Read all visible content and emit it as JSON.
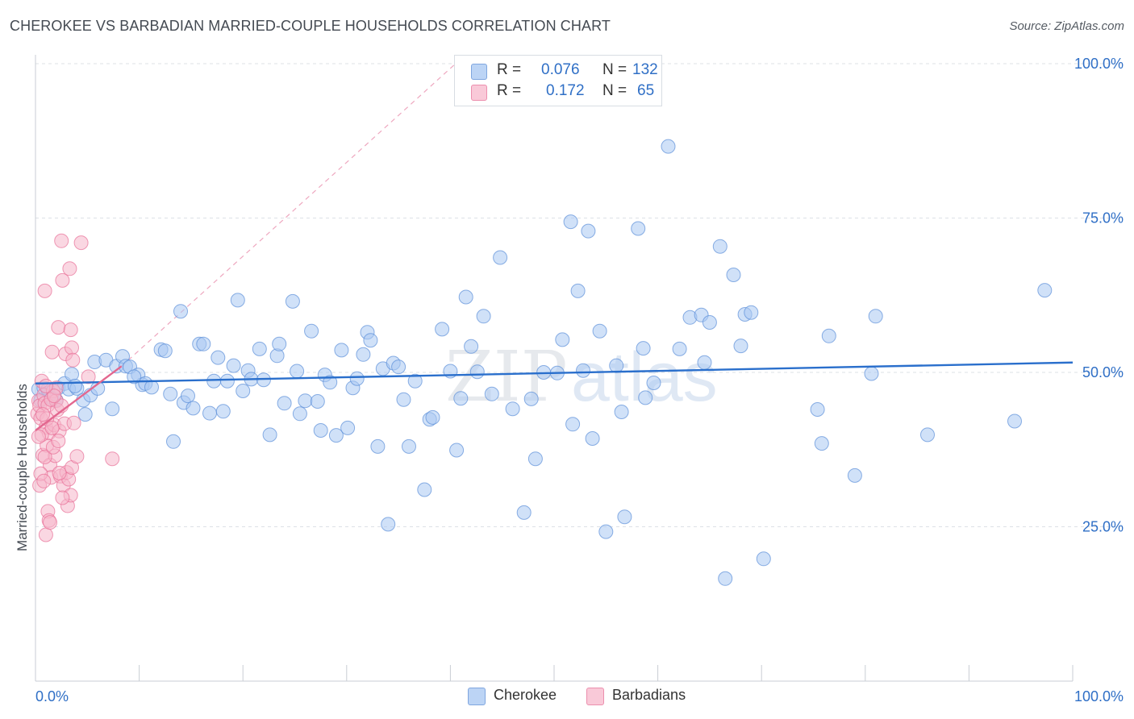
{
  "header": {
    "title": "CHEROKEE VS BARBADIAN MARRIED-COUPLE HOUSEHOLDS CORRELATION CHART",
    "source": "Source: ZipAtlas.com"
  },
  "watermark": {
    "part1": "ZIP",
    "part2": "atlas"
  },
  "legend": {
    "rows": [
      {
        "r_label": "R = ",
        "r_value": "0.076",
        "n_label": "N = ",
        "n_value": "132",
        "color": "#a9c8f2"
      },
      {
        "r_label": "R = ",
        "r_value": "0.172",
        "n_label": "N = ",
        "n_value": "65",
        "color": "#f6b6cb"
      }
    ]
  },
  "bottom_legend": {
    "items": [
      {
        "label": "Cherokee",
        "color": "#a9c8f2"
      },
      {
        "label": "Barbadians",
        "color": "#f6b6cb"
      }
    ]
  },
  "chart_data": {
    "type": "scatter",
    "title": "CHEROKEE VS BARBADIAN MARRIED-COUPLE HOUSEHOLDS CORRELATION CHART",
    "xlabel": "",
    "ylabel": "Married-couple Households",
    "xlim": [
      0,
      100
    ],
    "ylim": [
      0,
      100
    ],
    "x_tick_labels": [
      "0.0%",
      "100.0%"
    ],
    "y_ticks": [
      25,
      50,
      75,
      100
    ],
    "y_tick_labels": [
      "25.0%",
      "50.0%",
      "75.0%",
      "100.0%"
    ],
    "grid": "horizontal dashed",
    "legend_position": "top-center",
    "series": [
      {
        "name": "Cherokee",
        "color": "#5b8fd8",
        "fill": "#a9c8f2",
        "trend": {
          "x": [
            0,
            100
          ],
          "y": [
            48.2,
            51.6
          ]
        },
        "points": [
          [
            0.3,
            47.3
          ],
          [
            0.5,
            45.5
          ],
          [
            0.8,
            47.5
          ],
          [
            1.2,
            47.2
          ],
          [
            1.6,
            45.8
          ],
          [
            2.2,
            47.5
          ],
          [
            2.8,
            48.2
          ],
          [
            3.2,
            47.3
          ],
          [
            3.5,
            49.7
          ],
          [
            4.0,
            47.4
          ],
          [
            4.6,
            45.5
          ],
          [
            4.8,
            43.2
          ],
          [
            5.3,
            46.3
          ],
          [
            5.7,
            51.7
          ],
          [
            6.0,
            47.4
          ],
          [
            6.8,
            52.0
          ],
          [
            7.4,
            44.1
          ],
          [
            7.8,
            51.0
          ],
          [
            8.4,
            52.6
          ],
          [
            8.7,
            51.0
          ],
          [
            9.1,
            50.9
          ],
          [
            9.9,
            49.6
          ],
          [
            10.3,
            48.0
          ],
          [
            10.6,
            48.2
          ],
          [
            11.2,
            47.6
          ],
          [
            12.1,
            53.7
          ],
          [
            12.5,
            53.5
          ],
          [
            13.0,
            46.5
          ],
          [
            13.3,
            38.8
          ],
          [
            14.0,
            59.9
          ],
          [
            14.3,
            45.1
          ],
          [
            14.7,
            46.2
          ],
          [
            15.2,
            44.2
          ],
          [
            15.8,
            54.6
          ],
          [
            16.2,
            54.6
          ],
          [
            16.8,
            43.4
          ],
          [
            17.2,
            48.6
          ],
          [
            17.6,
            52.4
          ],
          [
            18.1,
            43.7
          ],
          [
            18.5,
            48.6
          ],
          [
            19.1,
            51.1
          ],
          [
            19.5,
            61.7
          ],
          [
            20.0,
            47.0
          ],
          [
            20.5,
            50.3
          ],
          [
            20.8,
            48.9
          ],
          [
            21.6,
            53.8
          ],
          [
            22.0,
            48.8
          ],
          [
            22.6,
            39.9
          ],
          [
            23.3,
            52.7
          ],
          [
            23.5,
            54.6
          ],
          [
            24.0,
            45.0
          ],
          [
            24.8,
            61.5
          ],
          [
            25.2,
            50.2
          ],
          [
            25.5,
            43.3
          ],
          [
            26.0,
            45.4
          ],
          [
            26.6,
            56.7
          ],
          [
            27.2,
            45.3
          ],
          [
            27.5,
            40.6
          ],
          [
            27.9,
            49.6
          ],
          [
            28.4,
            48.4
          ],
          [
            29.0,
            39.8
          ],
          [
            29.5,
            53.6
          ],
          [
            30.1,
            41.0
          ],
          [
            30.6,
            47.5
          ],
          [
            31.0,
            49.0
          ],
          [
            31.6,
            52.9
          ],
          [
            32.0,
            56.5
          ],
          [
            32.3,
            55.2
          ],
          [
            33.0,
            38.0
          ],
          [
            33.5,
            50.6
          ],
          [
            34.0,
            25.4
          ],
          [
            34.5,
            51.5
          ],
          [
            35.0,
            50.9
          ],
          [
            35.5,
            45.6
          ],
          [
            36.0,
            38.0
          ],
          [
            36.6,
            48.6
          ],
          [
            37.5,
            31.0
          ],
          [
            38.0,
            42.4
          ],
          [
            38.3,
            42.7
          ],
          [
            39.2,
            57.0
          ],
          [
            40.0,
            50.2
          ],
          [
            40.6,
            37.4
          ],
          [
            41.0,
            45.8
          ],
          [
            41.5,
            62.2
          ],
          [
            42.0,
            54.2
          ],
          [
            42.6,
            50.1
          ],
          [
            43.2,
            59.1
          ],
          [
            44.0,
            46.5
          ],
          [
            44.8,
            68.6
          ],
          [
            46.0,
            44.1
          ],
          [
            47.1,
            27.3
          ],
          [
            47.8,
            45.7
          ],
          [
            48.2,
            36.0
          ],
          [
            49.0,
            50.0
          ],
          [
            50.3,
            49.9
          ],
          [
            50.8,
            55.3
          ],
          [
            51.6,
            74.4
          ],
          [
            51.8,
            41.6
          ],
          [
            52.3,
            63.2
          ],
          [
            52.8,
            50.3
          ],
          [
            53.3,
            72.9
          ],
          [
            53.7,
            39.3
          ],
          [
            54.4,
            56.7
          ],
          [
            55.0,
            24.2
          ],
          [
            56.0,
            51.1
          ],
          [
            56.5,
            43.6
          ],
          [
            56.8,
            26.6
          ],
          [
            58.1,
            73.3
          ],
          [
            58.6,
            53.9
          ],
          [
            58.8,
            45.9
          ],
          [
            59.6,
            48.3
          ],
          [
            61.0,
            86.6
          ],
          [
            62.1,
            53.8
          ],
          [
            63.1,
            58.9
          ],
          [
            64.2,
            59.3
          ],
          [
            64.5,
            51.6
          ],
          [
            65.0,
            58.1
          ],
          [
            66.0,
            70.4
          ],
          [
            66.5,
            16.6
          ],
          [
            67.3,
            65.8
          ],
          [
            68.0,
            54.3
          ],
          [
            68.4,
            59.4
          ],
          [
            69.0,
            59.7
          ],
          [
            70.2,
            19.8
          ],
          [
            75.4,
            44.0
          ],
          [
            75.8,
            38.5
          ],
          [
            76.5,
            55.9
          ],
          [
            79.0,
            33.3
          ],
          [
            80.6,
            49.8
          ],
          [
            81.0,
            59.1
          ],
          [
            86.0,
            39.9
          ],
          [
            94.4,
            42.1
          ],
          [
            97.3,
            63.3
          ],
          [
            2.0,
            45.5
          ],
          [
            3.8,
            47.8
          ],
          [
            9.5,
            49.3
          ]
        ]
      },
      {
        "name": "Barbadians",
        "color": "#e86f97",
        "fill": "#f6b6cb",
        "trend": {
          "x": [
            0,
            8.3
          ],
          "y": [
            40.6,
            51.0
          ]
        },
        "trend_extension": {
          "x": [
            8.3,
            40.5
          ],
          "y": [
            51.0,
            100
          ]
        },
        "points": [
          [
            0.2,
            43.3
          ],
          [
            0.3,
            45.4
          ],
          [
            0.4,
            44.6
          ],
          [
            0.5,
            42.6
          ],
          [
            0.6,
            48.6
          ],
          [
            0.7,
            36.6
          ],
          [
            0.8,
            46.3
          ],
          [
            0.9,
            45.0
          ],
          [
            1.0,
            41.1
          ],
          [
            1.1,
            38.2
          ],
          [
            1.2,
            44.7
          ],
          [
            1.3,
            40.2
          ],
          [
            1.4,
            35.0
          ],
          [
            1.5,
            33.0
          ],
          [
            1.6,
            53.3
          ],
          [
            1.7,
            47.0
          ],
          [
            1.8,
            41.5
          ],
          [
            1.9,
            36.5
          ],
          [
            2.0,
            45.4
          ],
          [
            2.1,
            43.9
          ],
          [
            2.2,
            57.3
          ],
          [
            2.3,
            40.5
          ],
          [
            2.4,
            33.2
          ],
          [
            2.5,
            71.3
          ],
          [
            2.6,
            64.9
          ],
          [
            2.7,
            31.7
          ],
          [
            2.8,
            41.7
          ],
          [
            2.9,
            53.0
          ],
          [
            3.0,
            33.8
          ],
          [
            3.1,
            28.4
          ],
          [
            3.2,
            32.7
          ],
          [
            3.3,
            66.8
          ],
          [
            3.4,
            56.9
          ],
          [
            3.5,
            54.0
          ],
          [
            3.6,
            52.0
          ],
          [
            0.9,
            63.2
          ],
          [
            1.0,
            23.7
          ],
          [
            1.2,
            27.5
          ],
          [
            1.3,
            26.0
          ],
          [
            1.4,
            25.7
          ],
          [
            0.4,
            31.7
          ],
          [
            0.5,
            33.6
          ],
          [
            0.6,
            39.9
          ],
          [
            0.8,
            32.4
          ],
          [
            0.9,
            36.3
          ],
          [
            1.1,
            42.5
          ],
          [
            1.5,
            45.6
          ],
          [
            1.7,
            37.9
          ],
          [
            2.0,
            47.5
          ],
          [
            2.5,
            44.6
          ],
          [
            3.4,
            30.1
          ],
          [
            3.5,
            34.6
          ],
          [
            3.7,
            41.8
          ],
          [
            4.0,
            36.4
          ],
          [
            4.4,
            71.0
          ],
          [
            5.1,
            49.3
          ],
          [
            7.4,
            36.0
          ],
          [
            2.3,
            33.7
          ],
          [
            2.6,
            29.7
          ],
          [
            1.8,
            46.2
          ],
          [
            0.3,
            39.6
          ],
          [
            0.7,
            43.2
          ],
          [
            1.0,
            47.8
          ],
          [
            1.6,
            41.0
          ],
          [
            2.2,
            38.9
          ]
        ]
      }
    ]
  }
}
